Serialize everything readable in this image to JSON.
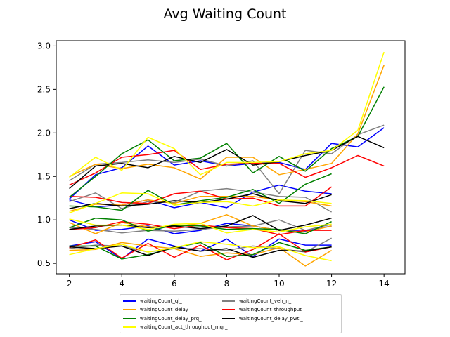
{
  "chart_data": {
    "type": "line",
    "title": "Avg Waiting Count",
    "xlabel": "",
    "ylabel": "",
    "xlim": [
      1.5,
      14.8
    ],
    "ylim": [
      0.38,
      3.06
    ],
    "xticks": [
      2,
      4,
      6,
      8,
      10,
      12,
      14
    ],
    "yticks": [
      0.5,
      1.0,
      1.5,
      2.0,
      2.5,
      3.0
    ],
    "ytick_labels": [
      "0.5",
      "1.0",
      "1.5",
      "2.0",
      "2.5",
      "3.0"
    ],
    "grid": false,
    "legend_position": "below",
    "series": [
      {
        "name": "waitingCount_ql_",
        "color": "#0000ff",
        "lines": [
          {
            "x": [
              2,
              3,
              4,
              5,
              6,
              7,
              8,
              9,
              10,
              11,
              12,
              13,
              14
            ],
            "y": [
              1.24,
              1.52,
              1.6,
              1.85,
              1.63,
              1.68,
              1.62,
              1.65,
              1.66,
              1.58,
              1.88,
              1.84,
              2.06
            ]
          },
          {
            "x": [
              2,
              3,
              4,
              5,
              6,
              7,
              8,
              9,
              10,
              11,
              12
            ],
            "y": [
              1.23,
              1.15,
              1.17,
              1.23,
              1.14,
              1.2,
              1.14,
              1.32,
              1.4,
              1.33,
              1.3
            ]
          },
          {
            "x": [
              2,
              3,
              4,
              5,
              6,
              7,
              8,
              9,
              10,
              11,
              12
            ],
            "y": [
              1.0,
              0.88,
              0.89,
              0.93,
              0.84,
              0.88,
              0.96,
              0.93,
              0.88,
              0.87,
              0.93
            ]
          },
          {
            "x": [
              2,
              3,
              4,
              5,
              6,
              7,
              8,
              9,
              10,
              11,
              12
            ],
            "y": [
              0.7,
              0.75,
              0.55,
              0.78,
              0.7,
              0.64,
              0.78,
              0.58,
              0.78,
              0.71,
              0.71
            ]
          }
        ]
      },
      {
        "name": "waitingCount_veh_n_",
        "color": "#808080",
        "lines": [
          {
            "x": [
              2,
              3,
              4,
              5,
              6,
              7,
              8,
              9,
              10,
              11,
              12,
              13,
              14
            ],
            "y": [
              1.45,
              1.64,
              1.66,
              1.69,
              1.66,
              1.7,
              1.62,
              1.68,
              1.3,
              1.8,
              1.76,
              1.98,
              2.09
            ]
          },
          {
            "x": [
              2,
              3,
              4,
              5,
              6,
              7,
              8,
              9,
              10,
              11,
              12
            ],
            "y": [
              1.21,
              1.31,
              1.13,
              1.21,
              1.2,
              1.33,
              1.36,
              1.32,
              1.27,
              1.26,
              1.09
            ]
          },
          {
            "x": [
              2,
              3,
              4,
              5,
              6,
              7,
              8,
              9,
              10,
              11,
              12
            ],
            "y": [
              0.91,
              0.89,
              0.85,
              0.88,
              0.87,
              0.89,
              0.92,
              0.93,
              1.0,
              0.88,
              0.95
            ]
          },
          {
            "x": [
              2,
              3,
              4,
              5,
              6,
              7,
              8,
              9,
              10,
              11,
              12
            ],
            "y": [
              0.67,
              0.71,
              0.7,
              0.63,
              0.67,
              0.67,
              0.65,
              0.7,
              0.67,
              0.63,
              0.79
            ]
          }
        ]
      },
      {
        "name": "waitingCount_delay_",
        "color": "#ffa500",
        "lines": [
          {
            "x": [
              2,
              3,
              4,
              5,
              6,
              7,
              8,
              9,
              10,
              11,
              12,
              13,
              14
            ],
            "y": [
              1.5,
              1.64,
              1.59,
              1.64,
              1.6,
              1.47,
              1.72,
              1.72,
              1.52,
              1.58,
              1.65,
              1.99,
              2.78
            ]
          },
          {
            "x": [
              2,
              3,
              4,
              5,
              6,
              7,
              8,
              9,
              10,
              11,
              12
            ],
            "y": [
              1.1,
              1.18,
              1.17,
              1.23,
              1.19,
              1.27,
              1.27,
              1.27,
              1.23,
              1.21,
              1.16
            ]
          },
          {
            "x": [
              2,
              3,
              4,
              5,
              6,
              7,
              8,
              9,
              10,
              11,
              12
            ],
            "y": [
              0.97,
              0.84,
              0.97,
              0.92,
              0.92,
              0.96,
              1.06,
              0.93,
              0.88,
              0.86,
              0.93
            ]
          },
          {
            "x": [
              2,
              3,
              4,
              5,
              6,
              7,
              8,
              9,
              10,
              11,
              12
            ],
            "y": [
              0.65,
              0.66,
              0.74,
              0.7,
              0.67,
              0.58,
              0.62,
              0.6,
              0.68,
              0.47,
              0.65
            ]
          }
        ]
      },
      {
        "name": "waitingCount_throughput_",
        "color": "#ff0000",
        "lines": [
          {
            "x": [
              2,
              3,
              4,
              5,
              6,
              7,
              8,
              9,
              10,
              11,
              12,
              13,
              14
            ],
            "y": [
              1.4,
              1.54,
              1.72,
              1.75,
              1.8,
              1.58,
              1.64,
              1.65,
              1.65,
              1.49,
              1.6,
              1.74,
              1.62
            ]
          },
          {
            "x": [
              2,
              3,
              4,
              5,
              6,
              7,
              8,
              9,
              10,
              11,
              12
            ],
            "y": [
              1.27,
              1.26,
              1.2,
              1.19,
              1.3,
              1.33,
              1.24,
              1.25,
              1.16,
              1.16,
              1.38
            ]
          },
          {
            "x": [
              2,
              3,
              4,
              5,
              6,
              7,
              8,
              9,
              10,
              11,
              12
            ],
            "y": [
              0.89,
              0.91,
              0.98,
              0.95,
              0.9,
              0.94,
              0.91,
              0.9,
              0.83,
              0.88,
              0.88
            ]
          },
          {
            "x": [
              2,
              3,
              4,
              5,
              6,
              7,
              8,
              9,
              10,
              11,
              12
            ],
            "y": [
              0.68,
              0.77,
              0.56,
              0.73,
              0.57,
              0.71,
              0.54,
              0.66,
              0.84,
              0.63,
              0.69
            ]
          }
        ]
      },
      {
        "name": "waitingCount_delay_prq_",
        "color": "#008000",
        "lines": [
          {
            "x": [
              2,
              3,
              4,
              5,
              6,
              7,
              8,
              9,
              10,
              11,
              12,
              13,
              14
            ],
            "y": [
              1.26,
              1.5,
              1.76,
              1.92,
              1.68,
              1.71,
              1.88,
              1.54,
              1.73,
              1.56,
              1.82,
              1.96,
              2.53
            ]
          },
          {
            "x": [
              2,
              3,
              4,
              5,
              6,
              7,
              8,
              9,
              10,
              11,
              12
            ],
            "y": [
              1.16,
              1.15,
              1.11,
              1.34,
              1.17,
              1.22,
              1.26,
              1.35,
              1.19,
              1.41,
              1.53
            ]
          },
          {
            "x": [
              2,
              3,
              4,
              5,
              6,
              7,
              8,
              9,
              10,
              11,
              12
            ],
            "y": [
              0.91,
              1.02,
              1.0,
              0.87,
              0.94,
              0.93,
              0.89,
              0.9,
              0.89,
              0.84,
              0.98
            ]
          },
          {
            "x": [
              2,
              3,
              4,
              5,
              6,
              7,
              8,
              9,
              10,
              11,
              12
            ],
            "y": [
              0.7,
              0.7,
              0.55,
              0.6,
              0.68,
              0.74,
              0.58,
              0.6,
              0.74,
              0.65,
              0.69
            ]
          }
        ]
      },
      {
        "name": "waitingCount_delay_pwtl_",
        "color": "#000000",
        "lines": [
          {
            "x": [
              2,
              3,
              4,
              5,
              6,
              7,
              8,
              9,
              10,
              11,
              12,
              13,
              14
            ],
            "y": [
              1.36,
              1.62,
              1.65,
              1.6,
              1.73,
              1.66,
              1.81,
              1.63,
              1.67,
              1.74,
              1.8,
              1.96,
              1.83
            ]
          },
          {
            "x": [
              2,
              3,
              4,
              5,
              6,
              7,
              8,
              9,
              10,
              11,
              12
            ],
            "y": [
              1.13,
              1.19,
              1.16,
              1.18,
              1.22,
              1.2,
              1.24,
              1.3,
              1.22,
              1.19,
              1.29
            ]
          },
          {
            "x": [
              2,
              3,
              4,
              5,
              6,
              7,
              8,
              9,
              10,
              11,
              12
            ],
            "y": [
              0.89,
              0.93,
              0.94,
              0.91,
              0.93,
              0.9,
              0.93,
              1.05,
              0.88,
              0.94,
              1.02
            ]
          },
          {
            "x": [
              2,
              3,
              4,
              5,
              6,
              7,
              8,
              9,
              10,
              11,
              12
            ],
            "y": [
              0.69,
              0.67,
              0.7,
              0.59,
              0.69,
              0.64,
              0.67,
              0.57,
              0.65,
              0.64,
              0.69
            ]
          }
        ]
      },
      {
        "name": "waitingCount_act_throughput_mqr_",
        "color": "#ffff00",
        "lines": [
          {
            "x": [
              2,
              3,
              4,
              5,
              6,
              7,
              8,
              9,
              10,
              11,
              12,
              13,
              14
            ],
            "y": [
              1.49,
              1.72,
              1.57,
              1.95,
              1.82,
              1.52,
              1.66,
              1.66,
              1.67,
              1.76,
              1.8,
              2.03,
              2.93
            ]
          },
          {
            "x": [
              2,
              3,
              4,
              5,
              6,
              7,
              8,
              9,
              10,
              11,
              12
            ],
            "y": [
              1.08,
              1.19,
              1.31,
              1.3,
              1.17,
              1.2,
              1.21,
              1.16,
              1.23,
              1.22,
              1.19
            ]
          },
          {
            "x": [
              2,
              3,
              4,
              5,
              6,
              7,
              8,
              9,
              10,
              11,
              12
            ],
            "y": [
              1.01,
              0.94,
              0.94,
              0.89,
              0.95,
              0.96,
              0.85,
              0.89,
              0.86,
              0.92,
              0.95
            ]
          },
          {
            "x": [
              2,
              3,
              4,
              5,
              6,
              7,
              8,
              9,
              10,
              11,
              12
            ],
            "y": [
              0.6,
              0.67,
              0.72,
              0.63,
              0.68,
              0.75,
              0.72,
              0.68,
              0.69,
              0.59,
              0.53
            ]
          }
        ]
      }
    ]
  }
}
